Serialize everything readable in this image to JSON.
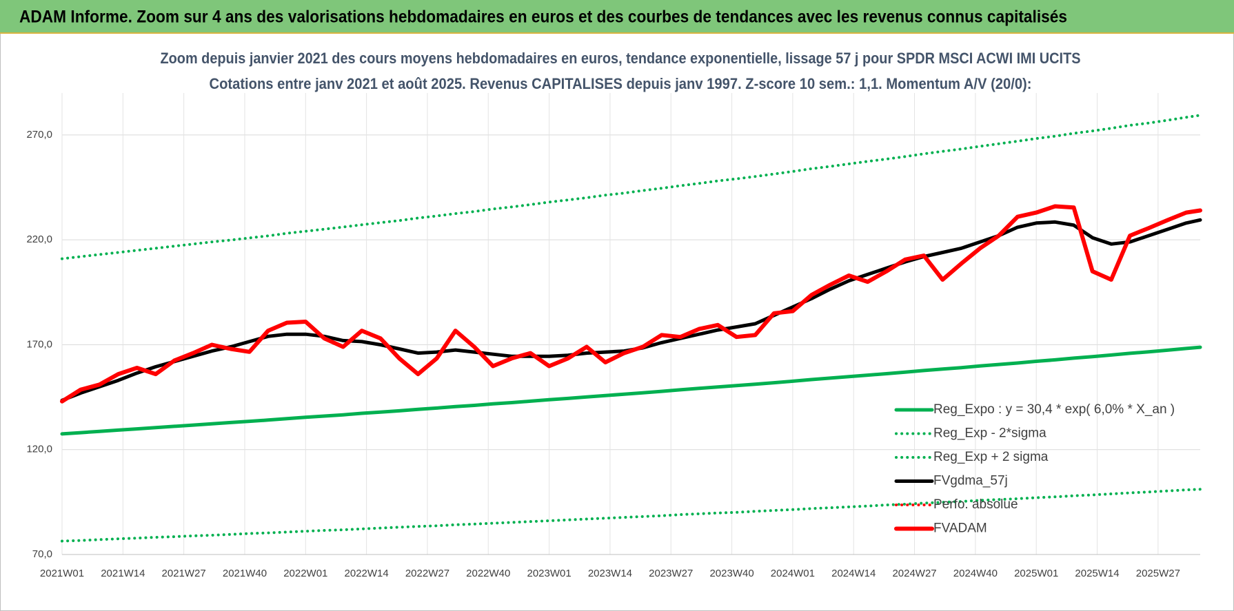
{
  "chart_data": {
    "type": "line",
    "title": "ADAM Informe. Zoom sur 4 ans des valorisations hebdomadaires en euros et des courbes de tendances avec les revenus connus capitalisés",
    "subtitle": [
      "Zoom depuis janvier 2021 des cours moyens hebdomadaires en euros, tendance exponentielle, lissage 57 j pour SPDR MSCI ACWI IMI UCITS",
      "Cotations entre janv 2021 et août 2025.  Revenus CAPITALISES depuis janv 1997. Z-score 10 sem.: 1,1. Momentum A/V (20/0):"
    ],
    "x": [
      0,
      4,
      8,
      12,
      16,
      20,
      24,
      28,
      32,
      36,
      40,
      44,
      48,
      52,
      56,
      60,
      64,
      68,
      72,
      76,
      80,
      84,
      88,
      92,
      96,
      100,
      104,
      108,
      112,
      116,
      120,
      124,
      128,
      132,
      136,
      140,
      144,
      148,
      152,
      156,
      160,
      164,
      168,
      172,
      176,
      180,
      184,
      188,
      192,
      196,
      200,
      204,
      208,
      212,
      216,
      220,
      224,
      228,
      232,
      236,
      240,
      243
    ],
    "xlim": [
      0,
      243
    ],
    "xticks": [
      {
        "value": 0,
        "label": "2021W01"
      },
      {
        "value": 13,
        "label": "2021W14"
      },
      {
        "value": 26,
        "label": "2021W27"
      },
      {
        "value": 39,
        "label": "2021W40"
      },
      {
        "value": 52,
        "label": "2022W01"
      },
      {
        "value": 65,
        "label": "2022W14"
      },
      {
        "value": 78,
        "label": "2022W27"
      },
      {
        "value": 91,
        "label": "2022W40"
      },
      {
        "value": 104,
        "label": "2023W01"
      },
      {
        "value": 117,
        "label": "2023W14"
      },
      {
        "value": 130,
        "label": "2023W27"
      },
      {
        "value": 143,
        "label": "2023W40"
      },
      {
        "value": 156,
        "label": "2024W01"
      },
      {
        "value": 169,
        "label": "2024W14"
      },
      {
        "value": 182,
        "label": "2024W27"
      },
      {
        "value": 195,
        "label": "2024W40"
      },
      {
        "value": 208,
        "label": "2025W01"
      },
      {
        "value": 221,
        "label": "2025W14"
      },
      {
        "value": 234,
        "label": "2025W27"
      }
    ],
    "ylim": [
      70,
      290
    ],
    "yticks": [
      {
        "value": 70,
        "label": "70,0"
      },
      {
        "value": 120,
        "label": "120,0"
      },
      {
        "value": 170,
        "label": "170,0"
      },
      {
        "value": 220,
        "label": "220,0"
      },
      {
        "value": 270,
        "label": "270,0"
      }
    ],
    "grid": true,
    "legend": "bottom-right",
    "series": [
      {
        "name": "Reg_Expo : y = 30,4 * exp( 6,0% *  X_an )",
        "color": "#00b050",
        "style": "solid",
        "values": [
          127.5,
          128.1,
          128.7,
          129.3,
          129.9,
          130.5,
          131.1,
          131.7,
          132.3,
          132.9,
          133.5,
          134.1,
          134.8,
          135.4,
          136.0,
          136.6,
          137.3,
          137.9,
          138.5,
          139.2,
          139.8,
          140.5,
          141.1,
          141.8,
          142.4,
          143.1,
          143.8,
          144.4,
          145.1,
          145.8,
          146.4,
          147.1,
          147.8,
          148.5,
          149.2,
          149.9,
          150.5,
          151.2,
          151.9,
          152.6,
          153.4,
          154.1,
          154.8,
          155.5,
          156.2,
          156.9,
          157.7,
          158.4,
          159.1,
          159.9,
          160.6,
          161.3,
          162.1,
          162.8,
          163.6,
          164.3,
          165.1,
          165.9,
          166.6,
          167.4,
          168.2,
          168.8
        ]
      },
      {
        "name": "Reg_Exp - 2*sigma",
        "color": "#00b050",
        "style": "dotted",
        "values": [
          76.4,
          76.7,
          77.1,
          77.5,
          77.8,
          78.2,
          78.5,
          78.9,
          79.2,
          79.6,
          80.0,
          80.3,
          80.7,
          81.1,
          81.5,
          81.8,
          82.2,
          82.6,
          83.0,
          83.4,
          83.7,
          84.2,
          84.5,
          84.9,
          85.3,
          85.7,
          86.1,
          86.5,
          86.9,
          87.3,
          87.7,
          88.1,
          88.5,
          89.0,
          89.4,
          89.8,
          90.1,
          90.6,
          91.0,
          91.4,
          91.9,
          92.3,
          92.7,
          93.1,
          93.6,
          94.0,
          94.5,
          94.9,
          95.3,
          95.8,
          96.2,
          96.6,
          97.1,
          97.5,
          98.0,
          98.4,
          98.9,
          99.4,
          99.8,
          100.3,
          100.8,
          101.1
        ]
      },
      {
        "name": "Reg_Exp + 2 sigma",
        "color": "#00b050",
        "style": "dotted",
        "values": [
          211.0,
          212.0,
          213.0,
          214.0,
          215.0,
          216.0,
          217.0,
          218.0,
          219.0,
          219.9,
          220.9,
          221.9,
          223.1,
          224.1,
          225.1,
          226.1,
          227.2,
          228.2,
          229.2,
          230.4,
          231.4,
          232.5,
          233.5,
          234.7,
          235.7,
          236.8,
          238.0,
          239.0,
          240.1,
          241.3,
          242.3,
          243.5,
          244.6,
          245.8,
          246.9,
          248.1,
          249.1,
          250.2,
          251.4,
          252.6,
          253.9,
          255.0,
          256.2,
          257.4,
          258.5,
          259.7,
          261.0,
          262.2,
          263.3,
          264.6,
          265.8,
          267.0,
          268.3,
          269.4,
          270.8,
          271.9,
          273.2,
          274.6,
          275.7,
          277.0,
          278.4,
          279.4
        ]
      },
      {
        "name": "FVgdma_57j",
        "color": "#000000",
        "style": "solid",
        "values": [
          143.5,
          147,
          150,
          153,
          156.5,
          159.5,
          162,
          164.5,
          167,
          169,
          171.5,
          174,
          175,
          175,
          174,
          172,
          171.5,
          170,
          168,
          166,
          166.5,
          167.5,
          166.5,
          165.5,
          164.5,
          164.5,
          164.5,
          165,
          166,
          166.5,
          167,
          168.5,
          171,
          173,
          175,
          177,
          178.5,
          180,
          184,
          188,
          192,
          196.5,
          200.5,
          203.5,
          206.5,
          209.5,
          212,
          214,
          216,
          219,
          222,
          226,
          228,
          228.5,
          227,
          221,
          218,
          219,
          222,
          225,
          228,
          229.5
        ]
      },
      {
        "name": "Perfo. absolue",
        "color": "#ff0000",
        "style": "dotted",
        "values": [
          143,
          148.6,
          151,
          156,
          159,
          156,
          162.5,
          166,
          170,
          168,
          166.6,
          176.7,
          180.5,
          181,
          173,
          169,
          176.7,
          173,
          163.5,
          156,
          163.5,
          176.7,
          169,
          159.8,
          163.5,
          166,
          159.8,
          163.5,
          169,
          161.6,
          166,
          169,
          174.6,
          173.7,
          177.5,
          179.4,
          173.7,
          174.6,
          185,
          186,
          193.7,
          198.6,
          203,
          200,
          205,
          210.6,
          212.5,
          201,
          208.7,
          216,
          222,
          231,
          233,
          236,
          235.4,
          205,
          201,
          222,
          225.6,
          229.4,
          233,
          234
        ]
      },
      {
        "name": "FVADAM",
        "color": "#ff0000",
        "style": "thick",
        "values": [
          143,
          148.6,
          151,
          156,
          159,
          156,
          162.5,
          166,
          170,
          168,
          166.6,
          176.7,
          180.5,
          181,
          173,
          169,
          176.7,
          173,
          163.5,
          156,
          163.5,
          176.7,
          169,
          159.8,
          163.5,
          166,
          159.8,
          163.5,
          169,
          161.6,
          166,
          169,
          174.6,
          173.7,
          177.5,
          179.4,
          173.7,
          174.6,
          185,
          186,
          193.7,
          198.6,
          203,
          200,
          205,
          210.6,
          212.5,
          201,
          208.7,
          216,
          222,
          231,
          233,
          236,
          235.4,
          205,
          201,
          222,
          225.6,
          229.4,
          233,
          234
        ]
      }
    ]
  }
}
